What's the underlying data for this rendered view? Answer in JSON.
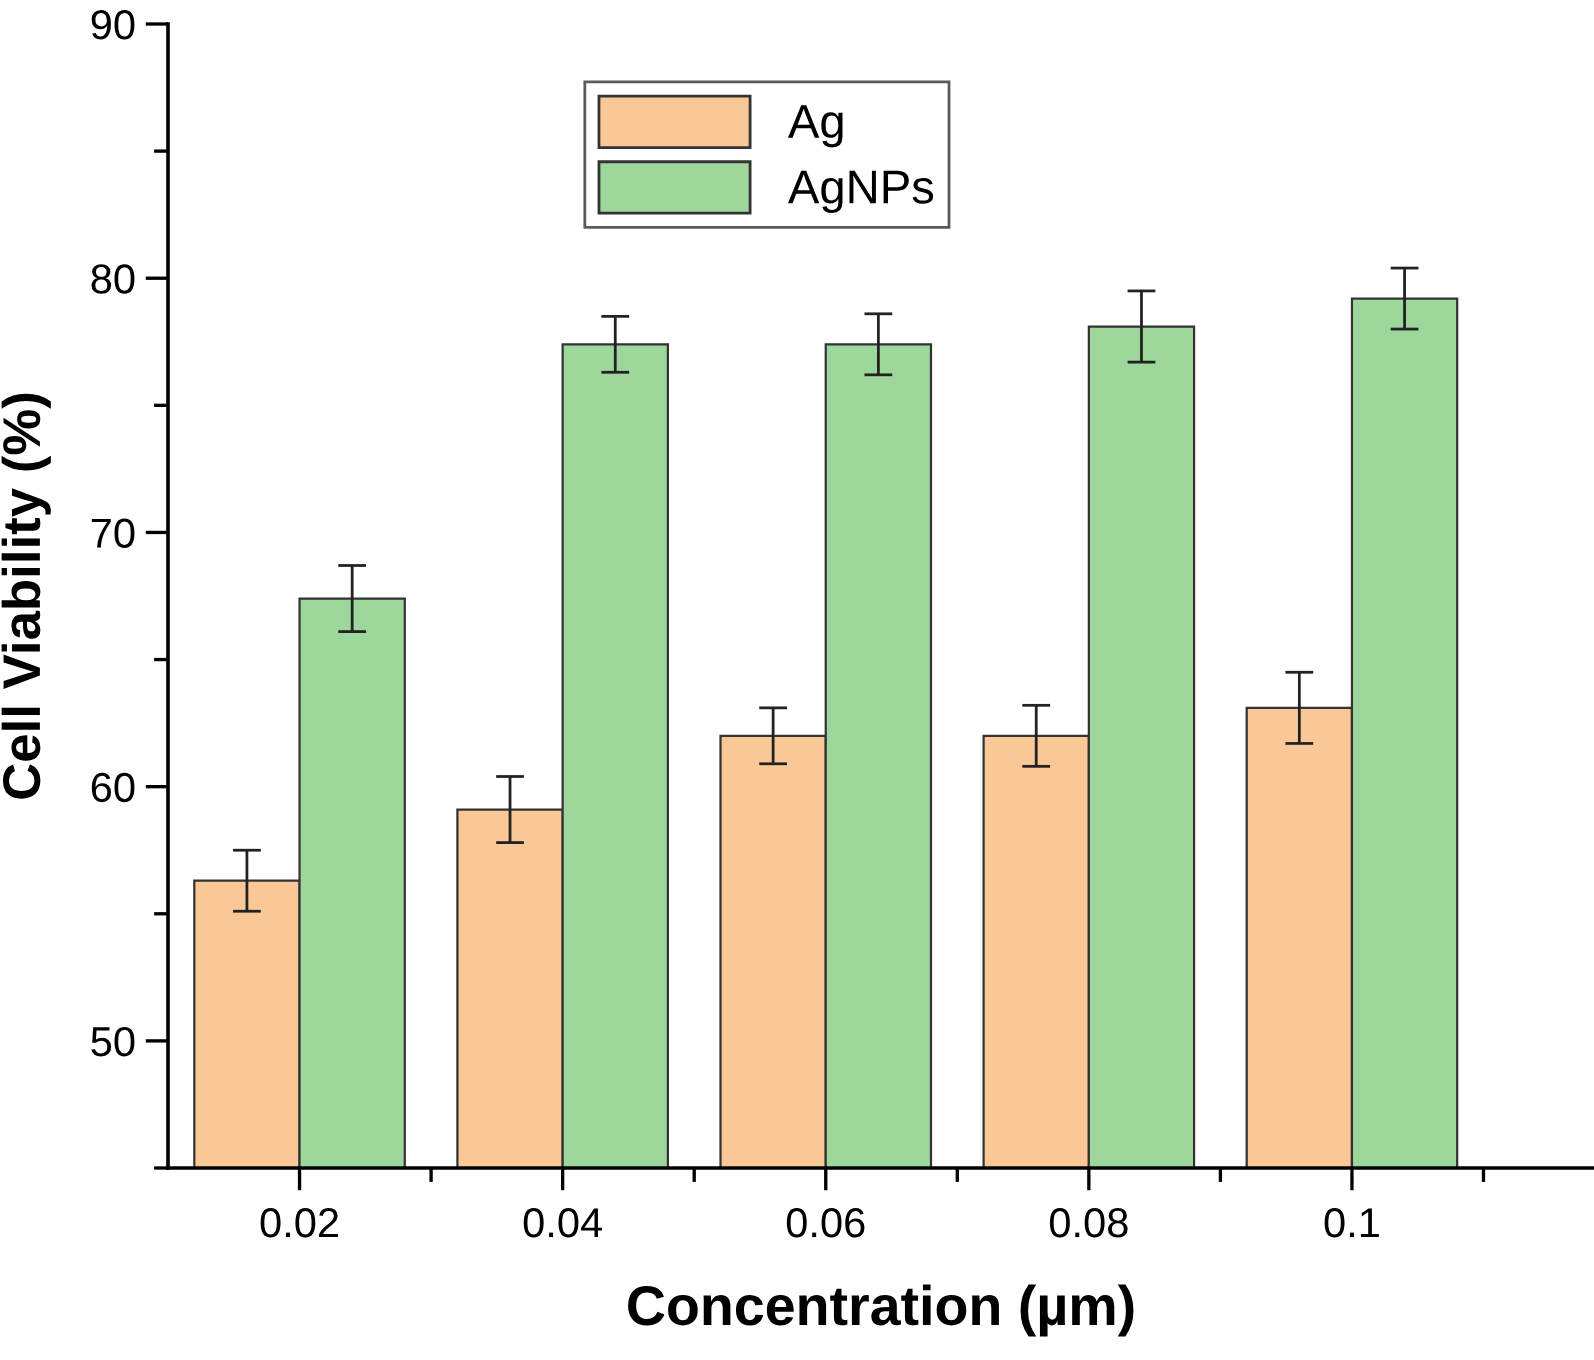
{
  "chart_data": {
    "type": "bar",
    "xlabel": "Concentration (µm)",
    "ylabel": "Cell Viability (%)",
    "categories": [
      "0.02",
      "0.04",
      "0.06",
      "0.08",
      "0.1"
    ],
    "series": [
      {
        "name": "Ag",
        "color": "#fac896",
        "values": [
          56.3,
          59.1,
          62.0,
          62.0,
          63.1
        ],
        "errors": [
          1.2,
          1.3,
          1.1,
          1.2,
          1.4
        ]
      },
      {
        "name": "AgNPs",
        "color": "#9dd79c",
        "values": [
          67.4,
          77.4,
          77.4,
          78.1,
          79.2
        ],
        "errors": [
          1.3,
          1.1,
          1.2,
          1.4,
          1.2
        ]
      }
    ],
    "ylim": [
      45,
      90
    ],
    "yticks": [
      50,
      60,
      70,
      80,
      90
    ],
    "grid": false,
    "legend": "top"
  }
}
